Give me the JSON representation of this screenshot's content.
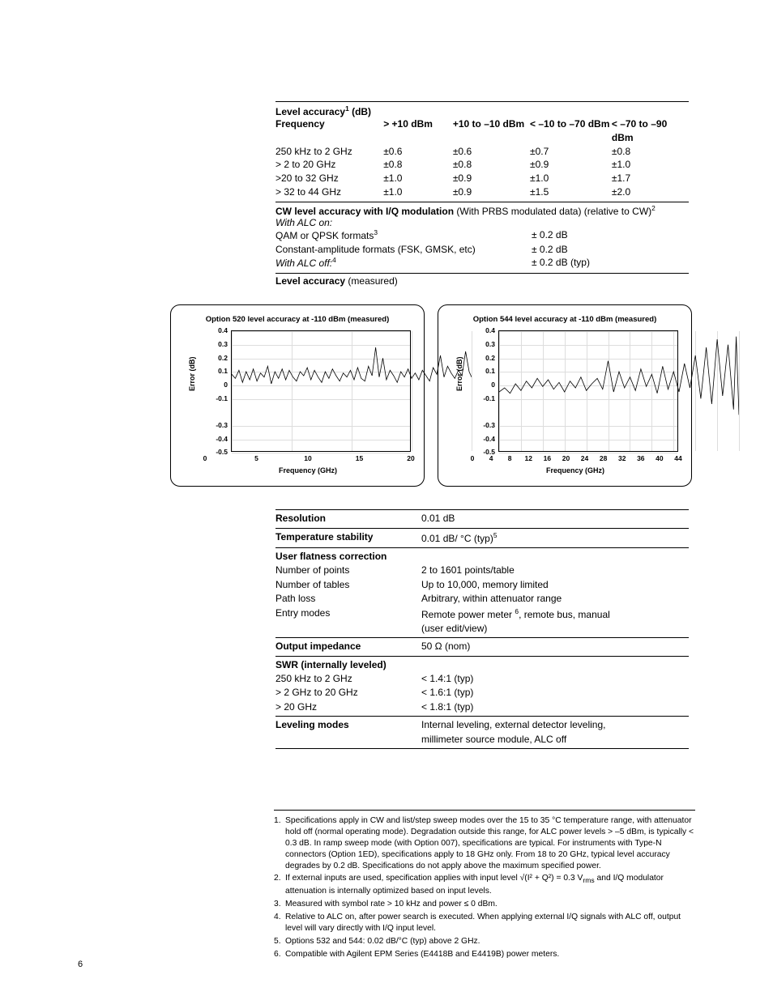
{
  "table1": {
    "title": "Level accuracy",
    "title_sup": "1",
    "title_unit": " (dB)",
    "headers": [
      "Frequency",
      "> +10 dBm",
      "+10 to –10 dBm",
      "< –10 to –70 dBm",
      "< –70 to –90 dBm"
    ],
    "rows": [
      [
        "250 kHz to 2 GHz",
        "±0.6",
        "±0.6",
        "±0.7",
        "±0.8"
      ],
      [
        "> 2 to 20 GHz",
        "±0.8",
        "±0.8",
        "±0.9",
        "±1.0"
      ],
      [
        ">20 to 32 GHz",
        "±1.0",
        "±0.9",
        "±1.0",
        "±1.7"
      ],
      [
        "> 32 to 44 GHz",
        "±1.0",
        "±0.9",
        "±1.5",
        "±2.0"
      ]
    ],
    "cw_line_bold": "CW level accuracy with I/Q modulation ",
    "cw_line_rest": "(With PRBS modulated data) (relative to CW)",
    "cw_sup": "2",
    "alc_on": "With ALC on:",
    "alc_rows": [
      {
        "l": "QAM or QPSK formats",
        "sup": "3",
        "r": "± 0.2 dB"
      },
      {
        "l": "Constant-amplitude formats (FSK, GMSK, etc)",
        "sup": "",
        "r": "± 0.2 dB"
      }
    ],
    "alc_off": "With ALC off:",
    "alc_off_sup": "4",
    "alc_off_val": "± 0.2 dB (typ)",
    "measured_label": "Level accuracy ",
    "measured_paren": "(measured)"
  },
  "chart_common": {
    "ylabel": "Error (dB)",
    "xlabel": "Frequency (GHz)",
    "yticks": [
      "0.4",
      "0.3",
      "0.2",
      "0.1",
      "0",
      "-0.1",
      "-0.3",
      "-0.4",
      "-0.5"
    ],
    "yvals": [
      0.4,
      0.3,
      0.2,
      0.1,
      0,
      -0.1,
      -0.3,
      -0.4,
      -0.5
    ],
    "ymin": -0.5,
    "ymax": 0.4,
    "grid_color": "#dddddd",
    "line_color": "#000000",
    "line_width": 0.8
  },
  "chart1": {
    "title": "Option 520 level accuracy at -110 dBm (measured)",
    "xticks": [
      "0",
      "5",
      "10",
      "15",
      "20"
    ],
    "xmax": 20,
    "data": [
      [
        0,
        0.08
      ],
      [
        0.3,
        0.05
      ],
      [
        0.6,
        0.11
      ],
      [
        0.9,
        0.02
      ],
      [
        1.2,
        0.1
      ],
      [
        1.5,
        0.04
      ],
      [
        1.8,
        0.12
      ],
      [
        2.1,
        0.03
      ],
      [
        2.4,
        0.09
      ],
      [
        2.7,
        0.06
      ],
      [
        3,
        0.14
      ],
      [
        3.3,
        0.01
      ],
      [
        3.6,
        0.1
      ],
      [
        3.9,
        0.05
      ],
      [
        4.2,
        0.12
      ],
      [
        4.5,
        0.04
      ],
      [
        4.8,
        0.11
      ],
      [
        5.1,
        0.06
      ],
      [
        5.4,
        0.03
      ],
      [
        5.7,
        0.1
      ],
      [
        6,
        0.07
      ],
      [
        6.3,
        0.13
      ],
      [
        6.6,
        0.04
      ],
      [
        6.9,
        0.11
      ],
      [
        7.2,
        0.06
      ],
      [
        7.5,
        0.02
      ],
      [
        7.8,
        0.1
      ],
      [
        8.1,
        0.05
      ],
      [
        8.4,
        0.12
      ],
      [
        8.7,
        0.07
      ],
      [
        9,
        0.03
      ],
      [
        9.3,
        0.09
      ],
      [
        9.6,
        0.06
      ],
      [
        9.9,
        0.11
      ],
      [
        10.2,
        0.04
      ],
      [
        10.5,
        0.13
      ],
      [
        10.8,
        0.05
      ],
      [
        11.1,
        0.03
      ],
      [
        11.4,
        0.14
      ],
      [
        11.7,
        0.07
      ],
      [
        12,
        0.28
      ],
      [
        12.3,
        0.06
      ],
      [
        12.6,
        0.2
      ],
      [
        12.9,
        0.04
      ],
      [
        13.2,
        0.11
      ],
      [
        13.5,
        0.07
      ],
      [
        13.8,
        0.02
      ],
      [
        14.1,
        0.1
      ],
      [
        14.4,
        0.06
      ],
      [
        14.7,
        0.12
      ],
      [
        15,
        0.05
      ],
      [
        15.3,
        0.09
      ],
      [
        15.6,
        0.04
      ],
      [
        15.9,
        0.11
      ],
      [
        16.2,
        0.07
      ],
      [
        16.5,
        0.03
      ],
      [
        16.8,
        0.13
      ],
      [
        17.1,
        0.08
      ],
      [
        17.4,
        0.22
      ],
      [
        17.7,
        0.06
      ],
      [
        18,
        0.14
      ],
      [
        18.3,
        0.09
      ],
      [
        18.6,
        0.05
      ],
      [
        18.9,
        0.11
      ],
      [
        19.2,
        0.07
      ],
      [
        19.5,
        0.25
      ],
      [
        19.8,
        0.1
      ],
      [
        20,
        0.06
      ]
    ]
  },
  "chart2": {
    "title": "Option 544 level accuracy at -110 dBm (measured)",
    "xticks": [
      "0",
      "4",
      "8",
      "12",
      "16",
      "20",
      "24",
      "28",
      "32",
      "36",
      "40",
      "44"
    ],
    "xmax": 44,
    "data": [
      [
        0,
        -0.05
      ],
      [
        1,
        -0.02
      ],
      [
        2,
        -0.06
      ],
      [
        3,
        0.01
      ],
      [
        4,
        -0.04
      ],
      [
        5,
        0.03
      ],
      [
        6,
        -0.02
      ],
      [
        7,
        0.05
      ],
      [
        8,
        -0.01
      ],
      [
        9,
        0.04
      ],
      [
        10,
        -0.03
      ],
      [
        11,
        0.02
      ],
      [
        12,
        -0.05
      ],
      [
        13,
        0.03
      ],
      [
        14,
        -0.02
      ],
      [
        15,
        0.06
      ],
      [
        16,
        -0.04
      ],
      [
        17,
        0.01
      ],
      [
        18,
        0.05
      ],
      [
        19,
        -0.03
      ],
      [
        20,
        0.18
      ],
      [
        21,
        -0.05
      ],
      [
        22,
        0.1
      ],
      [
        23,
        -0.02
      ],
      [
        24,
        0.06
      ],
      [
        25,
        -0.04
      ],
      [
        26,
        0.12
      ],
      [
        27,
        -0.01
      ],
      [
        28,
        0.08
      ],
      [
        29,
        -0.06
      ],
      [
        30,
        0.14
      ],
      [
        31,
        -0.03
      ],
      [
        32,
        0.1
      ],
      [
        33,
        -0.05
      ],
      [
        34,
        0.16
      ],
      [
        35,
        -0.02
      ],
      [
        36,
        0.22
      ],
      [
        37,
        -0.1
      ],
      [
        38,
        0.28
      ],
      [
        39,
        -0.14
      ],
      [
        40,
        0.34
      ],
      [
        41,
        -0.08
      ],
      [
        42,
        0.3
      ],
      [
        43,
        -0.18
      ],
      [
        43.5,
        0.36
      ],
      [
        44,
        -0.22
      ]
    ]
  },
  "table2": {
    "rows": [
      {
        "type": "kv",
        "bold": true,
        "l": "Resolution",
        "r": "0.01 dB",
        "sep_above": true
      },
      {
        "type": "kv",
        "bold": true,
        "l": "Temperature stability",
        "r_html": "0.01 dB/ °C (typ)",
        "sup": "5",
        "sep_above": true
      },
      {
        "type": "hdr",
        "l": "User flatness correction",
        "sep_above": true
      },
      {
        "type": "kv",
        "l": "Number of points",
        "r": "2 to 1601 points/table"
      },
      {
        "type": "kv",
        "l": "Number of tables",
        "r": "Up to 10,000, memory limited"
      },
      {
        "type": "kv",
        "l": "Path loss",
        "r": "Arbitrary, within attenuator range"
      },
      {
        "type": "kv",
        "l": "Entry modes",
        "r_html": "Remote power meter ",
        "sup": "6",
        "r_after": ", remote bus, manual"
      },
      {
        "type": "cont",
        "r": "(user edit/view)"
      },
      {
        "type": "kv",
        "bold": true,
        "l": "Output impedance",
        "r": "50 Ω (nom)",
        "sep_above": true
      },
      {
        "type": "hdr",
        "l": "SWR (internally leveled)",
        "sep_above": true
      },
      {
        "type": "kv",
        "l": "250 kHz to 2 GHz",
        "r": "< 1.4:1 (typ)"
      },
      {
        "type": "kv",
        "l": "> 2 GHz to 20 GHz",
        "r": "< 1.6:1 (typ)"
      },
      {
        "type": "kv",
        "l": "> 20 GHz",
        "r": "< 1.8:1 (typ)"
      },
      {
        "type": "kv",
        "bold": true,
        "l": "Leveling modes",
        "r": "Internal leveling, external detector leveling,",
        "sep_above": true
      },
      {
        "type": "cont",
        "r": "millimeter source module, ALC off",
        "sep_below": true
      }
    ]
  },
  "footnotes": [
    {
      "n": "1.",
      "t": "Specifications apply in CW and list/step sweep modes over the 15 to 35 °C temperature range, with attenuator hold off (normal operating mode). Degradation outside this range, for ALC power levels > –5 dBm, is typically < 0.3 dB. In ramp sweep mode (with Option 007), specifications are typical. For instruments with Type-N connectors (Option 1ED), specifications apply to 18 GHz only. From 18 to 20 GHz, typical level accuracy degrades by 0.2 dB. Specifications do not apply above the maximum specified power."
    },
    {
      "n": "2.",
      "t_html": "If external inputs are used, specification applies with input level √(I² + Q²) = 0.3 V<sub>rms</sub> and I/Q modulator attenuation is internally optimized based on input levels."
    },
    {
      "n": "3.",
      "t": "Measured with symbol rate > 10 kHz and power ≤ 0 dBm."
    },
    {
      "n": "4.",
      "t": "Relative to ALC on, after power search is executed. When applying external I/Q signals with ALC off, output level will vary directly with I/Q input level."
    },
    {
      "n": "5.",
      "t": "Options 532 and 544:  0.02 dB/°C (typ) above 2 GHz."
    },
    {
      "n": "6.",
      "t": "Compatible with Agilent EPM Series (E4418B and E4419B) power meters."
    }
  ],
  "page_number": "6"
}
